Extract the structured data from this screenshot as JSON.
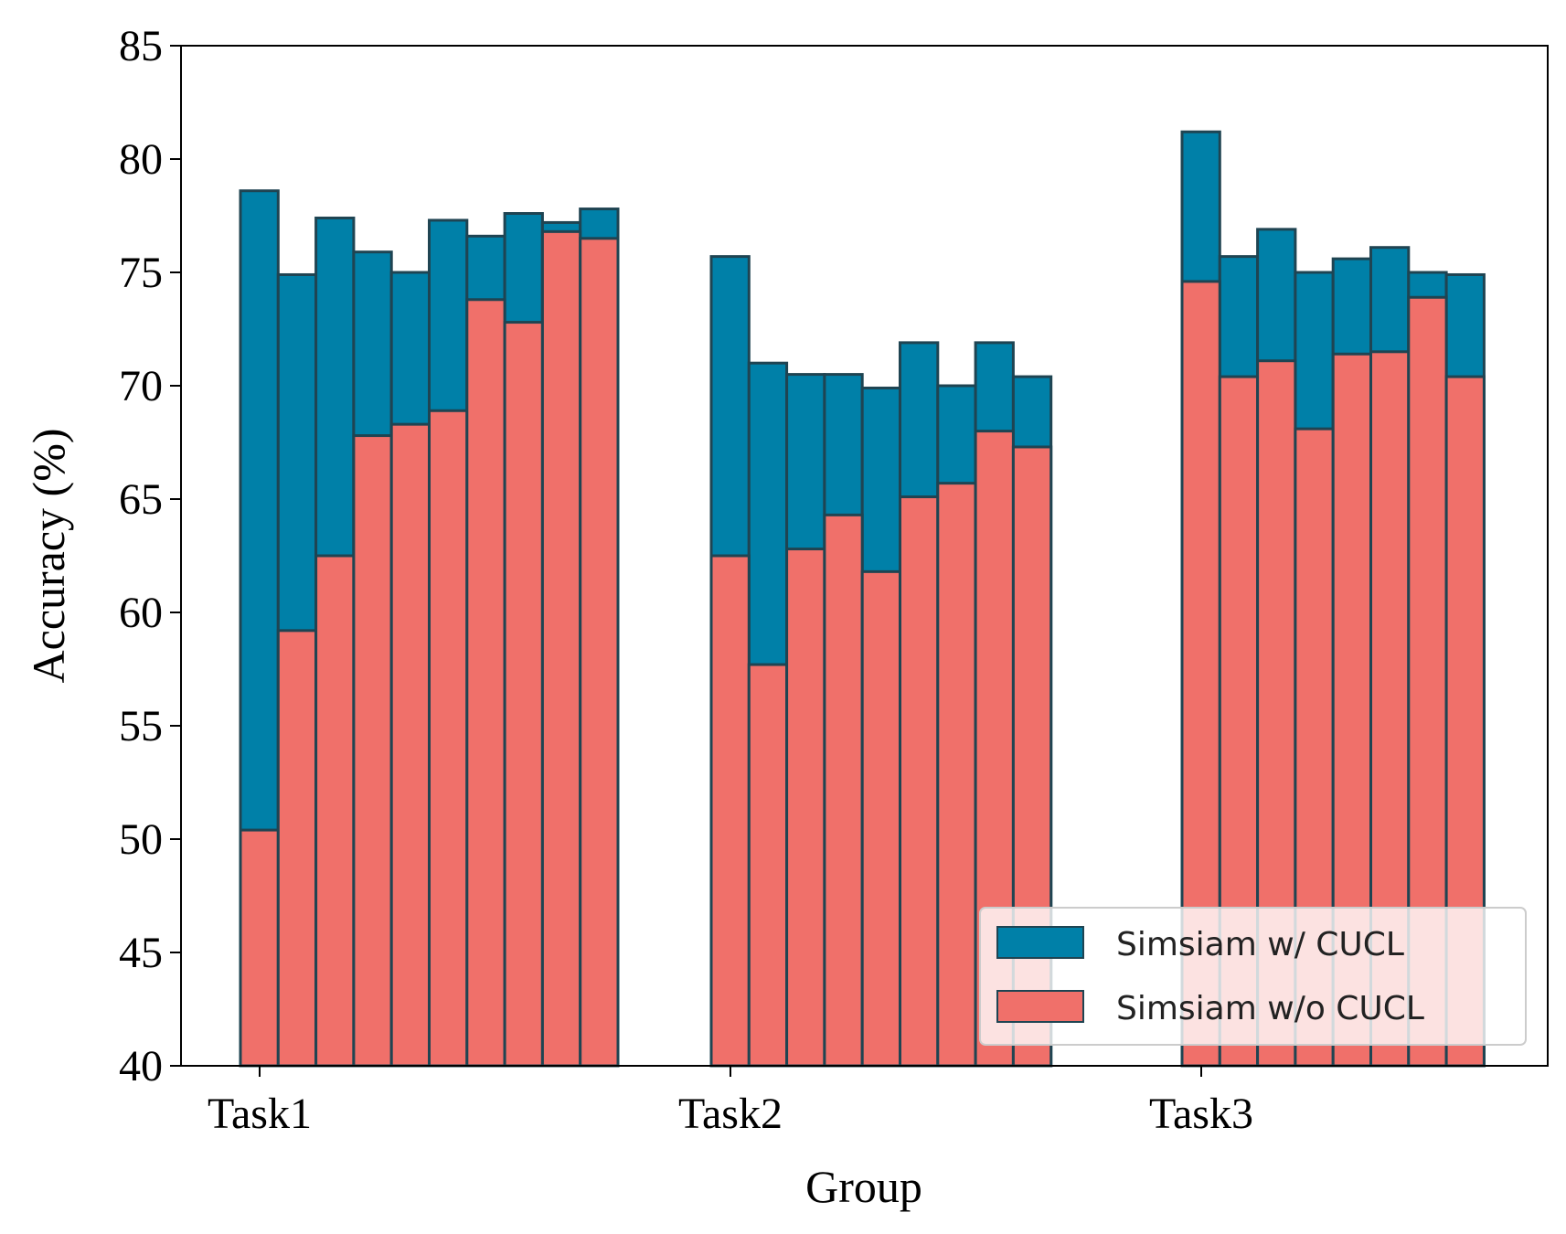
{
  "chart_data": {
    "type": "bar",
    "stacked_overlay": true,
    "categories": [
      "Task1",
      "Task2",
      "Task3"
    ],
    "xlabel": "Group",
    "ylabel": "Accuracy (%)",
    "ylim": [
      40,
      85
    ],
    "yticks": [
      40,
      45,
      50,
      55,
      60,
      65,
      70,
      75,
      80,
      85
    ],
    "grid": false,
    "legend_position": "bottom-right",
    "series": [
      {
        "name": "Simsiam w/ CUCL",
        "color": "#0080A8",
        "values": [
          [
            78.6,
            74.9,
            77.4,
            75.9,
            75.0,
            77.3,
            76.6,
            77.6,
            77.2,
            77.8
          ],
          [
            75.7,
            71.0,
            70.5,
            70.5,
            69.9,
            71.9,
            70.0,
            71.9,
            70.4
          ],
          [
            81.2,
            75.7,
            76.9,
            75.0,
            75.6,
            76.1,
            75.0,
            74.9
          ]
        ]
      },
      {
        "name": "Simsiam w/o CUCL",
        "color": "#F0706A",
        "values": [
          [
            50.4,
            59.2,
            62.5,
            67.8,
            68.3,
            68.9,
            73.8,
            72.8,
            76.8,
            76.5
          ],
          [
            62.5,
            57.7,
            62.8,
            64.3,
            61.8,
            65.1,
            65.7,
            68.0,
            67.3
          ],
          [
            74.6,
            70.4,
            71.1,
            68.1,
            71.4,
            71.5,
            73.9,
            70.4
          ]
        ]
      }
    ],
    "edge_color": "#1F4452"
  }
}
